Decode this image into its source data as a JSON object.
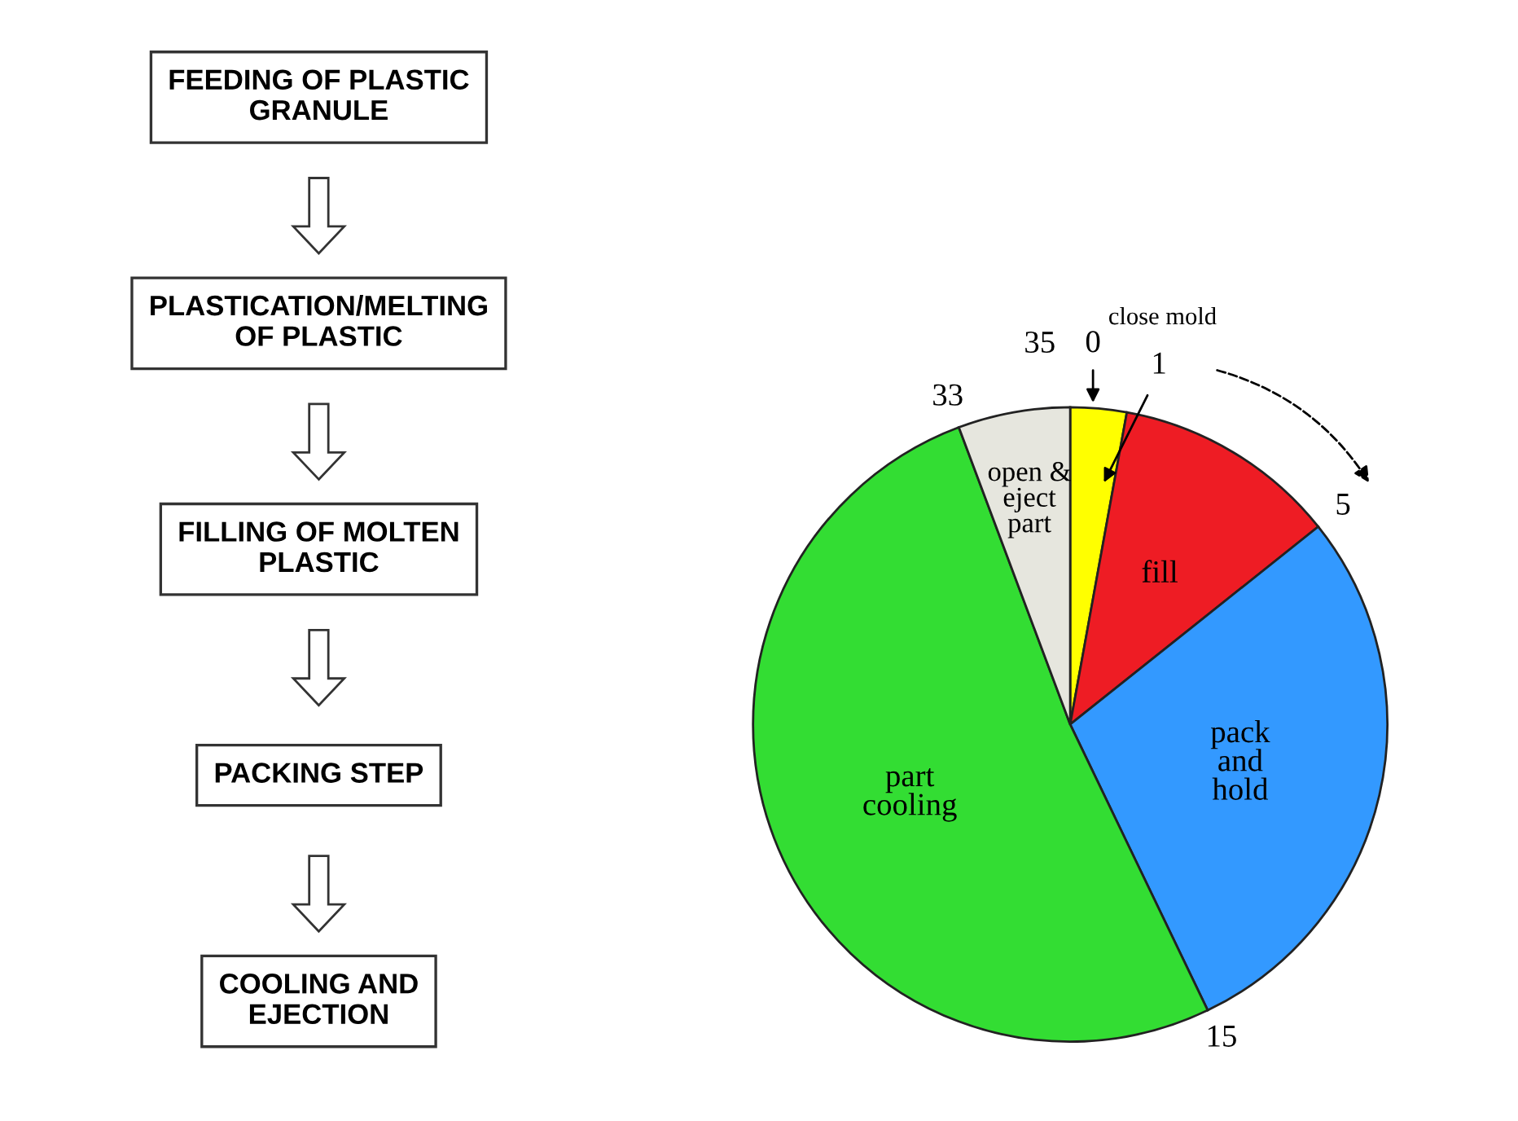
{
  "chart_data": [
    {
      "type": "other",
      "annotations": [
        "FEEDING OF PLASTIC\nGRANULE",
        "PLASTICATION/MELTING\nOF PLASTIC",
        "FILLING OF MOLTEN\nPLASTIC",
        "PACKING STEP",
        "COOLING AND\nEJECTION"
      ]
    },
    {
      "type": "pie",
      "categories": [
        "close mold",
        "fill",
        "pack\nand\nhold",
        "part\ncooling",
        "open &\neject\npart"
      ],
      "values": [
        2.86,
        11.43,
        28.57,
        51.43,
        5.71
      ],
      "colors": [
        "#ffff00",
        "#ee1c24",
        "#3399ff",
        "#33dd33",
        "#e6e6de"
      ],
      "annotations": [
        "0",
        "1",
        "5",
        "15",
        "33",
        "35"
      ]
    }
  ]
}
